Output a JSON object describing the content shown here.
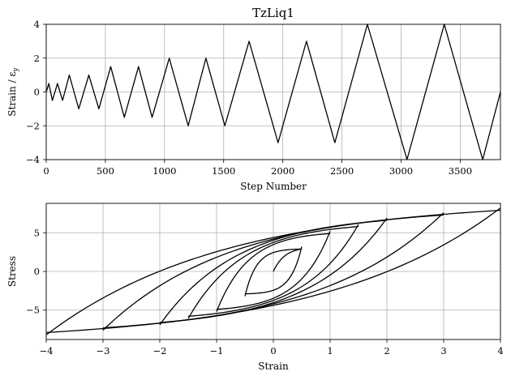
{
  "chart_data": [
    {
      "type": "line",
      "title": "TzLiq1",
      "xlabel": "Step Number",
      "ylabel": "Strain / εy",
      "xlim": [
        0,
        3840
      ],
      "ylim": [
        -4,
        4
      ],
      "xticks": [
        0,
        500,
        1000,
        1500,
        2000,
        2500,
        3000,
        3500
      ],
      "yticks": [
        -4,
        -2,
        0,
        2,
        4
      ],
      "grid": true,
      "series": [
        {
          "x": [
            0,
            22,
            52,
            95,
            138,
            195,
            275,
            360,
            445,
            545,
            660,
            780,
            895,
            1040,
            1200,
            1350,
            1510,
            1715,
            1960,
            2200,
            2440,
            2715,
            3050,
            3365,
            3690,
            3840
          ],
          "values": [
            0,
            0.5,
            -0.5,
            0.5,
            -0.5,
            1,
            -1,
            1,
            -1,
            1.5,
            -1.5,
            1.5,
            -1.5,
            2,
            -2,
            2,
            -2,
            3,
            -3,
            3,
            -3,
            4,
            -4,
            4,
            -4,
            0
          ]
        }
      ]
    },
    {
      "type": "line",
      "title": "",
      "xlabel": "Strain",
      "ylabel": "Stress",
      "xlim": [
        -4,
        4
      ],
      "ylim": [
        -8.8,
        8.8
      ],
      "xticks": [
        -4,
        -3,
        -2,
        -1,
        0,
        1,
        2,
        3,
        4
      ],
      "yticks": [
        -5,
        0,
        5
      ],
      "grid": true,
      "tick_labels_x": [
        "−4",
        "−3",
        "−2",
        "−1",
        "0",
        "1",
        "2",
        "3",
        "4"
      ],
      "tick_labels_y": [
        "−5",
        "0",
        "5"
      ],
      "hysteresis_cycles": [
        {
          "amplitude": 0.5,
          "peak_stress": 2.9
        },
        {
          "amplitude": 1.0,
          "peak_stress": 4.9
        },
        {
          "amplitude": 1.5,
          "peak_stress": 5.8
        },
        {
          "amplitude": 2.0,
          "peak_stress": 6.6
        },
        {
          "amplitude": 3.0,
          "peak_stress": 7.3
        },
        {
          "amplitude": 4.0,
          "peak_stress": 7.9
        }
      ]
    }
  ],
  "labels": {
    "top_title": "TzLiq1",
    "top_xlabel": "Step Number",
    "top_ylabel": "Strain / ε",
    "top_ylabel_sub": "y",
    "bottom_xlabel": "Strain",
    "bottom_ylabel": "Stress"
  }
}
